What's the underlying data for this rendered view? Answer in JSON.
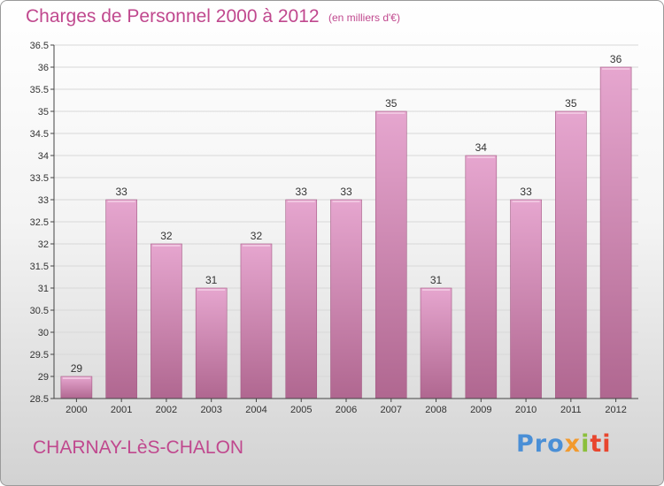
{
  "header": {
    "title": "Charges de Personnel 2000 à 2012",
    "unit": "(en milliers d'€)"
  },
  "footer": {
    "town": "CHARNAY-LèS-CHALON",
    "logo": [
      "Pro",
      "x",
      "i",
      "ti"
    ]
  },
  "colors": {
    "title": "#c0488e",
    "bar_top": "#e6a6cf",
    "bar_bottom": "#b06790",
    "grid": "#d8d8d8",
    "axis": "#444444"
  },
  "chart_data": {
    "type": "bar",
    "categories": [
      "2000",
      "2001",
      "2002",
      "2003",
      "2004",
      "2005",
      "2006",
      "2007",
      "2008",
      "2009",
      "2010",
      "2011",
      "2012"
    ],
    "values": [
      29,
      33,
      32,
      31,
      32,
      33,
      33,
      35,
      31,
      34,
      33,
      35,
      36
    ],
    "data_labels": [
      "29",
      "33",
      "32",
      "31",
      "32",
      "33",
      "33",
      "35",
      "31",
      "34",
      "33",
      "35",
      "36"
    ],
    "ylim": [
      28.5,
      36.5
    ],
    "yticks": [
      "28.5",
      "29",
      "29.5",
      "30",
      "30.5",
      "31",
      "31.5",
      "32",
      "32.5",
      "33",
      "33.5",
      "34",
      "34.5",
      "35",
      "35.5",
      "36",
      "36.5"
    ],
    "grid": "horizontal",
    "legend": "none"
  }
}
